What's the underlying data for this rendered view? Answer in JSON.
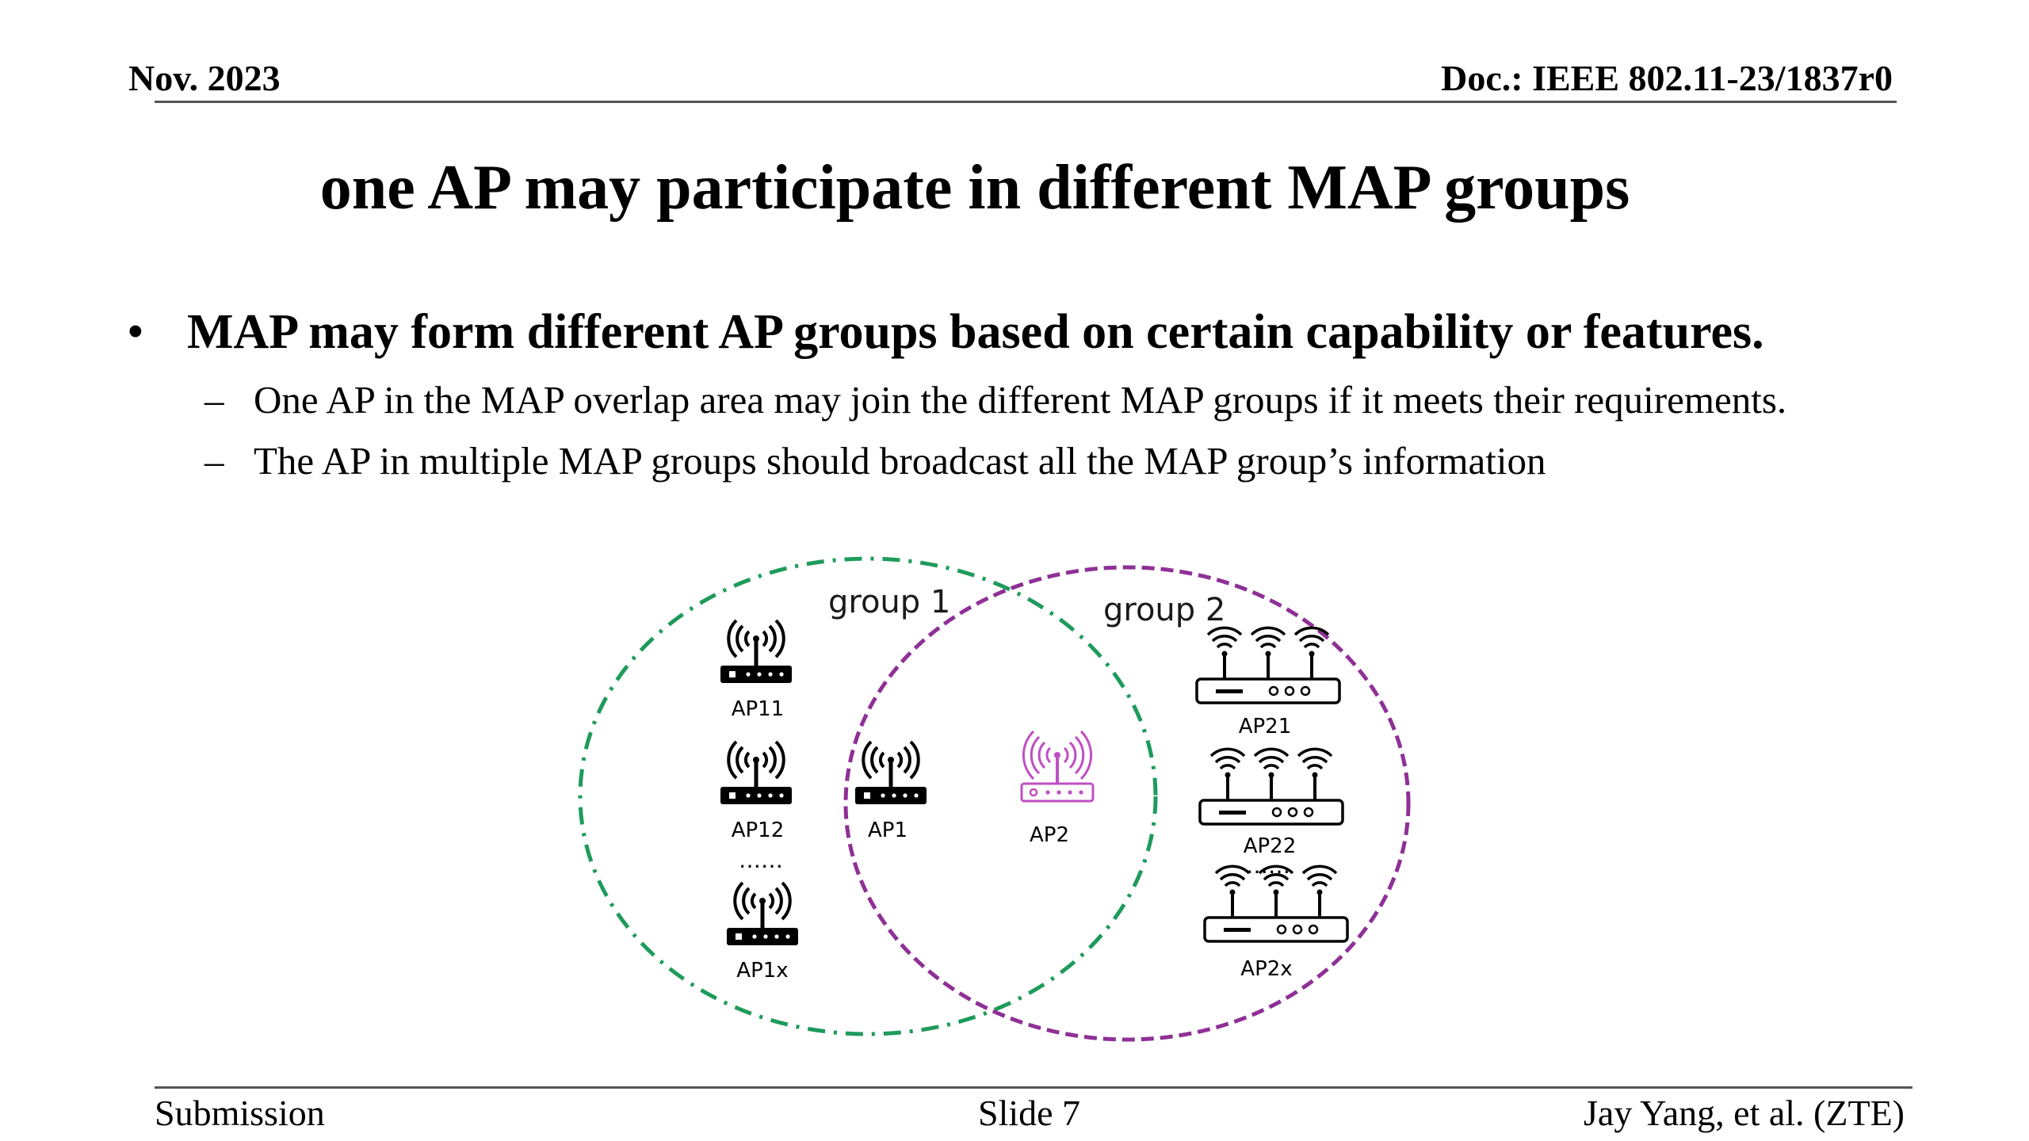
{
  "header": {
    "date": "Nov. 2023",
    "doc": "Doc.: IEEE 802.11-23/1837r0"
  },
  "title": "one AP may participate in different MAP groups",
  "bullets": {
    "main": "MAP may form different AP groups based on certain capability or features.",
    "sub": [
      "One AP in the MAP overlap area may join the different MAP groups if it meets their requirements.",
      "The AP in multiple MAP groups should broadcast all the MAP group’s information"
    ],
    "bullet_glyph": "•",
    "dash_glyph": "–"
  },
  "diagram": {
    "group1": {
      "label": "group 1",
      "color": "#1e9b5b"
    },
    "group2": {
      "label": "group 2",
      "color": "#8e3096"
    },
    "aps": {
      "ap11": "AP11",
      "ap12": "AP12",
      "ap1x": "AP1x",
      "ap1": "AP1",
      "ap2": "AP2",
      "ap21": "AP21",
      "ap22": "AP22",
      "ap2x": "AP2x"
    },
    "ellipsis": "……",
    "ap2_color": "#c04fc3"
  },
  "footer": {
    "left": "Submission",
    "center": "Slide 7",
    "right": "Jay Yang, et al. (ZTE)"
  }
}
